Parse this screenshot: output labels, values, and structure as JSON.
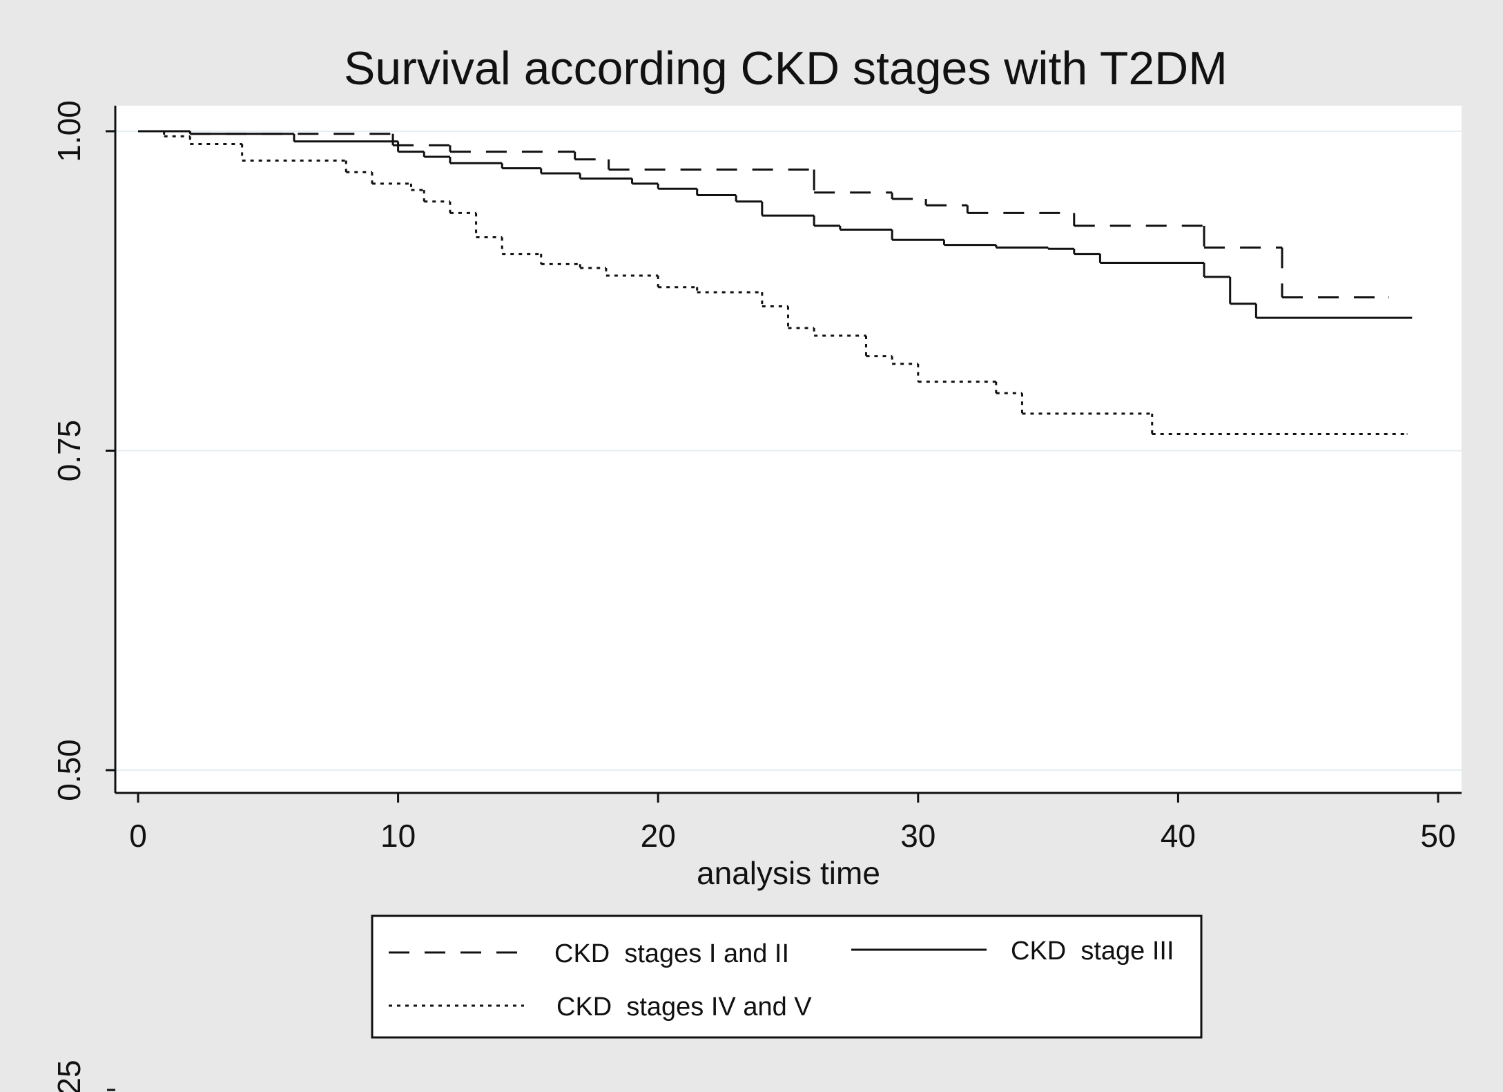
{
  "chart_data": {
    "type": "step",
    "title": "Survival according CKD stages with T2DM",
    "x_label": "analysis time",
    "xlim": [
      0,
      50
    ],
    "xticks": [
      0,
      10,
      20,
      30,
      40,
      50
    ],
    "ylim": [
      0.5,
      1.0
    ],
    "yticks": [
      {
        "value": 0.5,
        "label": "0.50"
      },
      {
        "value": 0.75,
        "label": "0.75"
      },
      {
        "value": 1.0,
        "label": "1.00"
      }
    ],
    "grid": true,
    "grid_color": "#e3eff3",
    "annotations": [
      "25"
    ],
    "series": [
      {
        "name": "CKD  stages I and II",
        "color": "#111111",
        "dash": "30 22",
        "x": [
          0,
          2,
          9.8,
          12,
          16.8,
          18.1,
          26,
          29,
          30.3,
          31.9,
          36,
          41,
          44,
          48.1
        ],
        "values": [
          1.0,
          0.998,
          0.989,
          0.984,
          0.978,
          0.97,
          0.952,
          0.947,
          0.942,
          0.936,
          0.926,
          0.909,
          0.87,
          0.87
        ]
      },
      {
        "name": "CKD  stage III",
        "color": "#111111",
        "dash": "none",
        "x": [
          0,
          2,
          6,
          10,
          11,
          12,
          14,
          15.5,
          17,
          19,
          20,
          21.5,
          23,
          24,
          26,
          27,
          29,
          31,
          33,
          35,
          36,
          37,
          41,
          42,
          43,
          49
        ],
        "values": [
          1.0,
          0.998,
          0.992,
          0.984,
          0.98,
          0.975,
          0.971,
          0.967,
          0.963,
          0.959,
          0.955,
          0.95,
          0.945,
          0.934,
          0.926,
          0.923,
          0.915,
          0.911,
          0.909,
          0.908,
          0.904,
          0.897,
          0.886,
          0.865,
          0.854,
          0.854
        ]
      },
      {
        "name": "CKD  stages IV and V",
        "color": "#111111",
        "dash": "5 7",
        "x": [
          0,
          1,
          2,
          4,
          8,
          9,
          10.5,
          11,
          12,
          13,
          14,
          15.5,
          17,
          18,
          20,
          21.5,
          24,
          25,
          26,
          28,
          29,
          30,
          33,
          34,
          39,
          48.8
        ],
        "values": [
          1.0,
          0.996,
          0.99,
          0.977,
          0.968,
          0.959,
          0.954,
          0.945,
          0.936,
          0.917,
          0.904,
          0.896,
          0.893,
          0.887,
          0.878,
          0.874,
          0.863,
          0.846,
          0.84,
          0.824,
          0.818,
          0.804,
          0.795,
          0.779,
          0.763,
          0.763
        ]
      }
    ]
  }
}
